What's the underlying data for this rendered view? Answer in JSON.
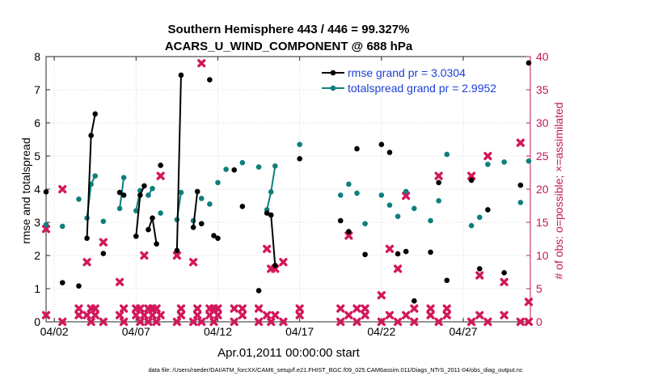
{
  "chart_data": {
    "type": "scatter",
    "title_line1": "Southern Hemisphere 443 / 446 = 99.327%",
    "title_line2": "ACARS_U_WIND_COMPONENT @ 688 hPa",
    "ylabel_left": "rmse and totalspread",
    "ylabel_right": "# of obs: o=possible; ×=assimilated",
    "xlabel": "Apr.01,2011 00:00:00 start",
    "footer": "data file: /Users/raeder/DAI/ATM_forcXX/CAM6_setup/f.e21.FHIST_BGC.f09_025.CAM6assim.011/Diags_NTrS_2011-04/obs_diag_output.nc",
    "xlim": [
      1.5,
      31.1
    ],
    "ylim_left": [
      0,
      8
    ],
    "ylim_right": [
      0,
      40
    ],
    "x_ticks": [
      2,
      7,
      12,
      17,
      22,
      27
    ],
    "x_tick_labels": [
      "04/02",
      "04/07",
      "04/12",
      "04/17",
      "04/22",
      "04/27"
    ],
    "y_ticks_left": [
      0,
      1,
      2,
      3,
      4,
      5,
      6,
      7,
      8
    ],
    "y_ticks_right": [
      0,
      5,
      10,
      15,
      20,
      25,
      30,
      35,
      40
    ],
    "grid": true,
    "legend": {
      "position": "top-right",
      "entries": [
        "rmse grand pr = 3.0304",
        "totalspread grand pr = 2.9952"
      ]
    },
    "colors": {
      "rmse": "#000000",
      "totalspread": "#0e7f7c",
      "obs": "#d3175b",
      "legend_text": "#1a3fd6",
      "right_axis": "#c2185b"
    },
    "rmse_segments": [
      [
        [
          1.5,
          3.92
        ]
      ],
      [
        [
          2.5,
          1.18
        ]
      ],
      [
        [
          3.5,
          1.08
        ]
      ],
      [
        [
          4.0,
          2.52
        ],
        [
          4.25,
          5.62
        ],
        [
          4.5,
          6.27
        ]
      ],
      [
        [
          5.0,
          2.06
        ]
      ],
      [
        [
          6.0,
          3.9
        ]
      ],
      [
        [
          6.25,
          3.82
        ]
      ],
      [
        [
          7.0,
          2.58
        ],
        [
          7.25,
          3.82
        ],
        [
          7.5,
          4.1
        ]
      ],
      [
        [
          7.75,
          2.78
        ],
        [
          8.0,
          3.13
        ],
        [
          8.25,
          2.35
        ]
      ],
      [
        [
          8.5,
          4.72
        ]
      ],
      [
        [
          9.5,
          2.15
        ],
        [
          9.75,
          7.44
        ]
      ],
      [
        [
          10.5,
          2.85
        ],
        [
          10.75,
          3.93
        ]
      ],
      [
        [
          11.0,
          2.96
        ]
      ],
      [
        [
          11.5,
          7.3
        ]
      ],
      [
        [
          11.75,
          2.6
        ]
      ],
      [
        [
          12.0,
          2.52
        ]
      ],
      [
        [
          13.0,
          4.58
        ]
      ],
      [
        [
          13.5,
          3.48
        ]
      ],
      [
        [
          14.5,
          0.94
        ]
      ],
      [
        [
          15.0,
          3.28
        ],
        [
          15.25,
          3.22
        ],
        [
          15.5,
          1.7
        ]
      ],
      [
        [
          17.0,
          4.92
        ]
      ],
      [
        [
          19.5,
          3.05
        ]
      ],
      [
        [
          20.0,
          2.72
        ]
      ],
      [
        [
          20.5,
          5.22
        ]
      ],
      [
        [
          21.0,
          2.03
        ]
      ],
      [
        [
          22.0,
          5.35
        ]
      ],
      [
        [
          22.5,
          5.11
        ]
      ],
      [
        [
          23.0,
          2.05
        ]
      ],
      [
        [
          23.5,
          2.12
        ]
      ],
      [
        [
          24.0,
          0.63
        ]
      ],
      [
        [
          25.0,
          2.1
        ]
      ],
      [
        [
          25.5,
          4.2
        ]
      ],
      [
        [
          26.0,
          1.25
        ]
      ],
      [
        [
          27.5,
          4.27
        ]
      ],
      [
        [
          28.0,
          1.6
        ]
      ],
      [
        [
          28.5,
          3.38
        ]
      ],
      [
        [
          29.5,
          1.48
        ]
      ],
      [
        [
          30.5,
          4.12
        ]
      ],
      [
        [
          31.0,
          7.81
        ]
      ]
    ],
    "totalspread_segments": [
      [
        [
          1.5,
          2.93
        ]
      ],
      [
        [
          2.5,
          2.88
        ]
      ],
      [
        [
          3.5,
          3.7
        ]
      ],
      [
        [
          4.0,
          3.13
        ],
        [
          4.25,
          4.15
        ],
        [
          4.5,
          4.4
        ]
      ],
      [
        [
          5.0,
          3.03
        ]
      ],
      [
        [
          6.0,
          3.42
        ],
        [
          6.25,
          4.35
        ]
      ],
      [
        [
          7.0,
          3.35
        ],
        [
          7.25,
          3.96
        ]
      ],
      [
        [
          7.75,
          3.82
        ],
        [
          8.0,
          4.02
        ]
      ],
      [
        [
          8.5,
          3.28
        ]
      ],
      [
        [
          9.5,
          3.08
        ],
        [
          9.75,
          3.9
        ]
      ],
      [
        [
          10.5,
          3.05
        ]
      ],
      [
        [
          11.0,
          3.72
        ]
      ],
      [
        [
          11.5,
          3.55
        ]
      ],
      [
        [
          12.0,
          4.2
        ]
      ],
      [
        [
          12.5,
          4.6
        ]
      ],
      [
        [
          13.5,
          4.8
        ]
      ],
      [
        [
          14.5,
          4.67
        ]
      ],
      [
        [
          15.0,
          3.38
        ],
        [
          15.25,
          3.92
        ],
        [
          15.5,
          4.7
        ]
      ],
      [
        [
          17.0,
          5.35
        ]
      ],
      [
        [
          19.5,
          3.82
        ]
      ],
      [
        [
          20.0,
          4.15
        ]
      ],
      [
        [
          20.5,
          3.88
        ]
      ],
      [
        [
          21.0,
          2.96
        ]
      ],
      [
        [
          22.0,
          3.82
        ]
      ],
      [
        [
          22.5,
          3.52
        ]
      ],
      [
        [
          23.0,
          3.18
        ]
      ],
      [
        [
          23.5,
          3.93
        ]
      ],
      [
        [
          24.0,
          3.42
        ]
      ],
      [
        [
          25.0,
          3.05
        ]
      ],
      [
        [
          25.5,
          3.65
        ]
      ],
      [
        [
          26.0,
          5.05
        ]
      ],
      [
        [
          27.5,
          2.9
        ]
      ],
      [
        [
          28.0,
          3.15
        ]
      ],
      [
        [
          28.5,
          4.75
        ]
      ],
      [
        [
          29.5,
          4.82
        ]
      ],
      [
        [
          30.5,
          3.6
        ]
      ],
      [
        [
          31.0,
          4.85
        ]
      ]
    ],
    "obs_possible": [
      [
        1.5,
        14
      ],
      [
        2.5,
        20
      ],
      [
        3.5,
        2
      ],
      [
        4.0,
        9
      ],
      [
        4.25,
        2
      ],
      [
        4.5,
        2
      ],
      [
        5.0,
        12
      ],
      [
        6.0,
        6
      ],
      [
        6.25,
        2
      ],
      [
        7.0,
        2
      ],
      [
        7.25,
        2
      ],
      [
        7.5,
        10
      ],
      [
        7.75,
        2
      ],
      [
        8.0,
        2
      ],
      [
        8.25,
        2
      ],
      [
        8.5,
        22
      ],
      [
        9.5,
        10
      ],
      [
        9.75,
        2
      ],
      [
        10.5,
        9
      ],
      [
        10.75,
        2
      ],
      [
        11.0,
        39
      ],
      [
        11.5,
        2
      ],
      [
        11.75,
        2
      ],
      [
        12.0,
        2
      ],
      [
        13.0,
        2
      ],
      [
        13.5,
        2
      ],
      [
        14.5,
        2
      ],
      [
        15.0,
        11
      ],
      [
        15.25,
        8
      ],
      [
        15.5,
        8
      ],
      [
        16.0,
        9
      ],
      [
        17.0,
        2
      ],
      [
        19.5,
        2
      ],
      [
        20.0,
        13
      ],
      [
        20.5,
        2
      ],
      [
        21.0,
        2
      ],
      [
        22.0,
        4
      ],
      [
        22.5,
        11
      ],
      [
        23.0,
        8
      ],
      [
        23.5,
        19
      ],
      [
        24.0,
        2
      ],
      [
        25.0,
        2
      ],
      [
        25.5,
        22
      ],
      [
        26.0,
        2
      ],
      [
        27.5,
        22
      ],
      [
        28.0,
        7
      ],
      [
        28.5,
        25
      ],
      [
        29.5,
        6
      ],
      [
        30.5,
        27
      ],
      [
        31.0,
        3
      ]
    ],
    "obs_assimilated": [
      [
        1.5,
        1
      ],
      [
        2.5,
        0
      ],
      [
        3.5,
        1
      ],
      [
        4.0,
        1
      ],
      [
        4.25,
        0
      ],
      [
        4.5,
        1
      ],
      [
        5.0,
        0
      ],
      [
        6.0,
        1
      ],
      [
        6.25,
        0
      ],
      [
        7.0,
        1
      ],
      [
        7.25,
        0
      ],
      [
        7.5,
        1
      ],
      [
        7.75,
        0
      ],
      [
        8.0,
        1
      ],
      [
        8.25,
        0
      ],
      [
        8.5,
        1
      ],
      [
        9.5,
        0
      ],
      [
        9.75,
        1
      ],
      [
        10.5,
        0
      ],
      [
        10.75,
        1
      ],
      [
        11.0,
        0
      ],
      [
        11.5,
        1
      ],
      [
        11.75,
        0
      ],
      [
        12.0,
        1
      ],
      [
        13.0,
        0
      ],
      [
        13.5,
        1
      ],
      [
        14.5,
        0
      ],
      [
        15.0,
        1
      ],
      [
        15.25,
        0
      ],
      [
        15.5,
        1
      ],
      [
        16.0,
        0
      ],
      [
        17.0,
        1
      ],
      [
        19.5,
        0
      ],
      [
        20.0,
        1
      ],
      [
        20.5,
        0
      ],
      [
        21.0,
        1
      ],
      [
        22.0,
        0
      ],
      [
        22.5,
        1
      ],
      [
        23.0,
        0
      ],
      [
        23.5,
        1
      ],
      [
        24.0,
        0
      ],
      [
        25.0,
        1
      ],
      [
        25.5,
        0
      ],
      [
        26.0,
        1
      ],
      [
        27.5,
        0
      ],
      [
        28.0,
        1
      ],
      [
        28.5,
        0
      ],
      [
        29.5,
        1
      ],
      [
        30.5,
        0
      ],
      [
        31.0,
        0
      ]
    ]
  }
}
